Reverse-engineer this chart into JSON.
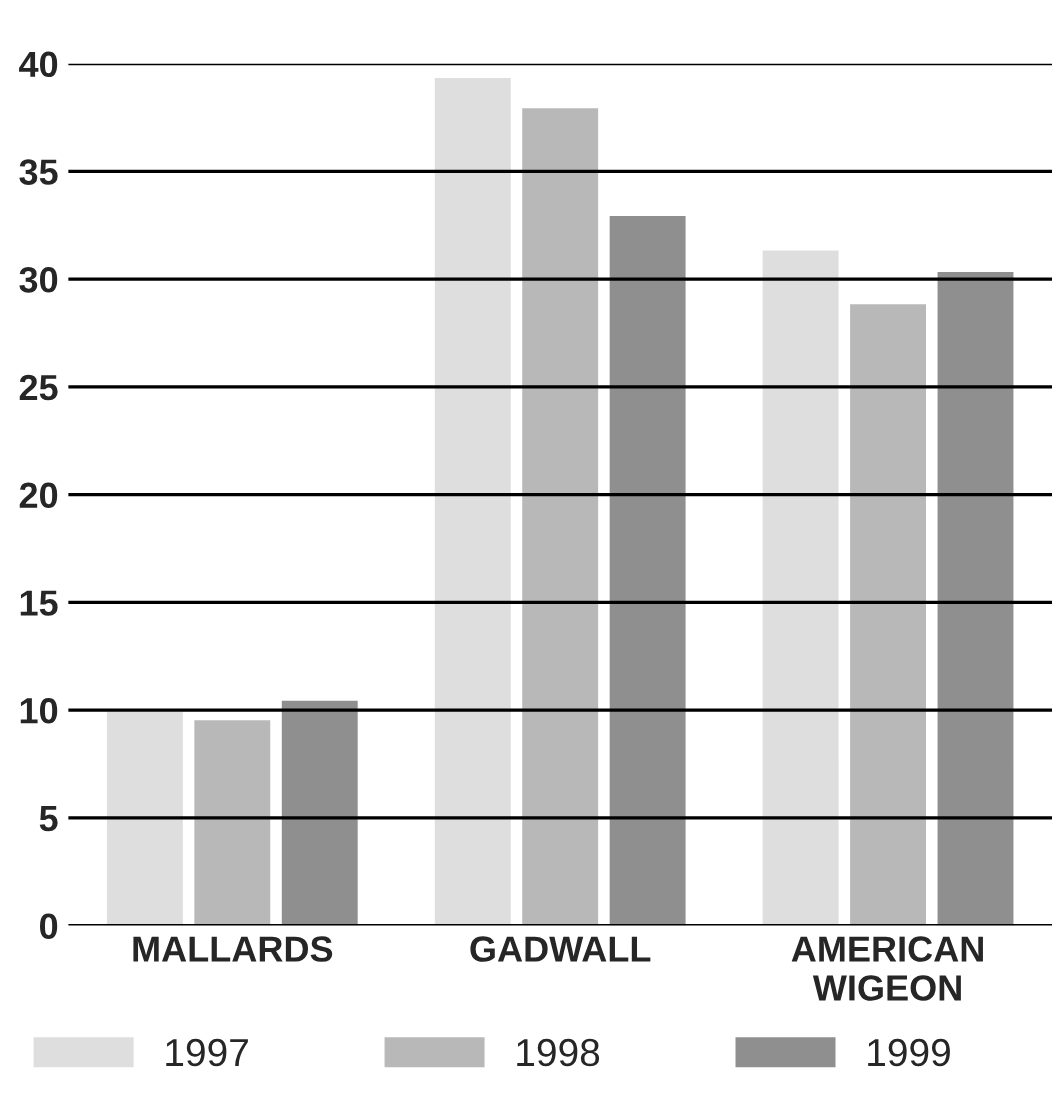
{
  "chart_data": {
    "type": "bar",
    "categories": [
      "MALLARDS",
      "GADWALL",
      "AMERICAN\nWIGEON"
    ],
    "series": [
      {
        "name": "1997",
        "color": "#dedede",
        "values": [
          10.0,
          39.4,
          31.4
        ]
      },
      {
        "name": "1998",
        "color": "#b8b8b8",
        "values": [
          9.6,
          38.0,
          28.9
        ]
      },
      {
        "name": "1999",
        "color": "#8f8f8f",
        "values": [
          10.5,
          33.0,
          30.4
        ]
      }
    ],
    "ylim": [
      0,
      40
    ],
    "yticks": [
      0,
      5,
      10,
      15,
      20,
      25,
      30,
      35,
      40
    ],
    "grid": "y",
    "legend": "bottom left"
  }
}
